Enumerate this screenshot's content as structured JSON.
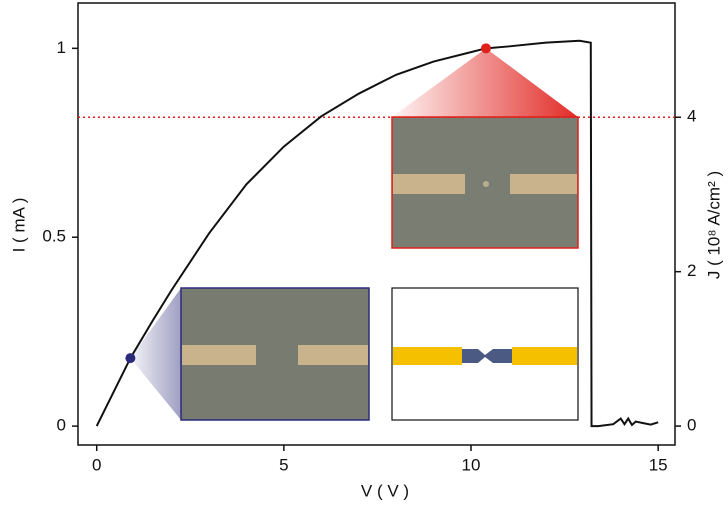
{
  "chart_data": {
    "type": "line",
    "x_label": "V ( V )",
    "y_label": "I ( mA )",
    "y2_label": "J ( 10⁸ A/cm² )",
    "series": [
      {
        "color": "#111111",
        "x": [
          0,
          0.5,
          0.9,
          1.5,
          2,
          3,
          4,
          5,
          6,
          7,
          8,
          9,
          10,
          10.4,
          11,
          12,
          12.9,
          13.2,
          13.22,
          13.4,
          13.8,
          14,
          14.1,
          14.2,
          14.3,
          14.4,
          14.6,
          14.8,
          15
        ],
        "values": [
          0,
          0.1,
          0.18,
          0.28,
          0.36,
          0.51,
          0.64,
          0.74,
          0.82,
          0.88,
          0.93,
          0.965,
          0.99,
          1.0,
          1.005,
          1.015,
          1.02,
          1.015,
          0,
          0,
          0.005,
          0.02,
          0.005,
          0.02,
          0.003,
          0.012,
          0.008,
          0.004,
          0.01
        ]
      }
    ],
    "markers": [
      {
        "x": 0.9,
        "y": 0.18,
        "color": "#2b2a7a"
      },
      {
        "x": 10.4,
        "y": 1.0,
        "color": "#e0201b"
      }
    ],
    "hline": {
      "axis": "y2",
      "value": 4,
      "color": "#e0201b"
    },
    "xlim": [
      -0.5,
      15.45
    ],
    "xticks": [
      0,
      5,
      10,
      15
    ],
    "ylim": [
      -0.05,
      1.12
    ],
    "yticks": [
      0,
      0.5,
      1
    ],
    "y2lim": [
      -0.245,
      5.48
    ],
    "y2ticks": [
      0,
      2,
      4
    ]
  }
}
